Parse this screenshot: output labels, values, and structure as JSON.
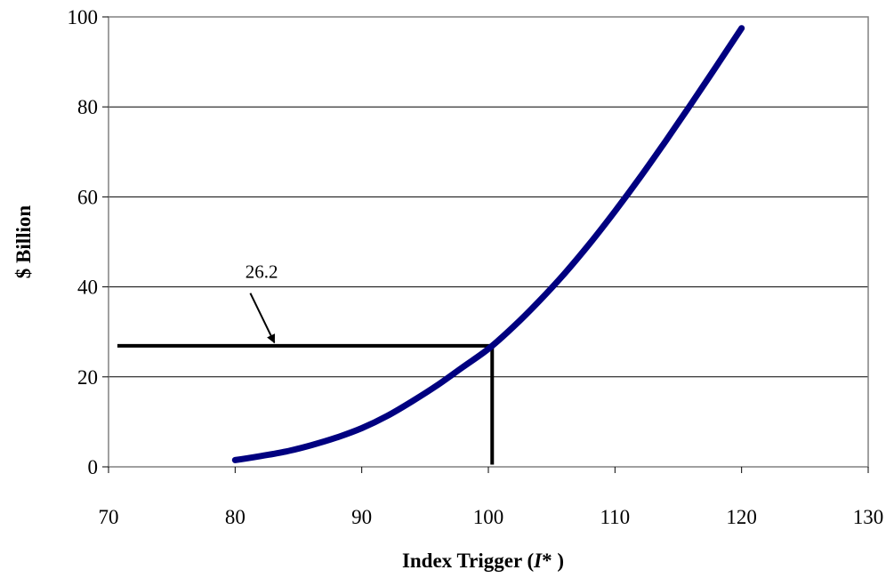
{
  "chart_data": {
    "type": "line",
    "title": "",
    "xlabel_main": "Index Trigger (",
    "xlabel_italic": "I",
    "xlabel_end": "* )",
    "ylabel": "$ Billion",
    "xlim": [
      70,
      130
    ],
    "ylim": [
      0,
      100
    ],
    "xticks": [
      70,
      80,
      90,
      100,
      110,
      120,
      130
    ],
    "yticks": [
      0,
      20,
      40,
      60,
      80,
      100
    ],
    "grid": "horizontal",
    "legend": "none",
    "colors": {
      "series": "#000080",
      "reference": "#000000",
      "grid": "#000000",
      "frame": "#808080"
    },
    "series": [
      {
        "x": [
          80,
          82,
          84,
          86,
          88,
          90,
          92,
          94,
          96,
          98,
          100,
          102,
          104,
          106,
          108,
          110,
          112,
          114,
          116,
          118,
          120
        ],
        "values": [
          1.5,
          2.4,
          3.4,
          4.8,
          6.5,
          8.6,
          11.3,
          14.6,
          18.2,
          22.2,
          26.2,
          31.2,
          36.8,
          42.9,
          49.6,
          56.8,
          64.4,
          72.4,
          80.6,
          89.0,
          97.5
        ]
      }
    ],
    "reference_lines": {
      "horizontal": {
        "y": 26.9,
        "x_from": 70.7,
        "x_to": 100.3
      },
      "vertical": {
        "x": 100.3,
        "y_from": 0.5,
        "y_to": 26.9
      }
    },
    "annotation": {
      "text": "26.2",
      "text_at": [
        80.8,
        42
      ],
      "arrow_from": [
        81.2,
        38.6
      ],
      "arrow_to": [
        83.1,
        27.6
      ]
    }
  }
}
